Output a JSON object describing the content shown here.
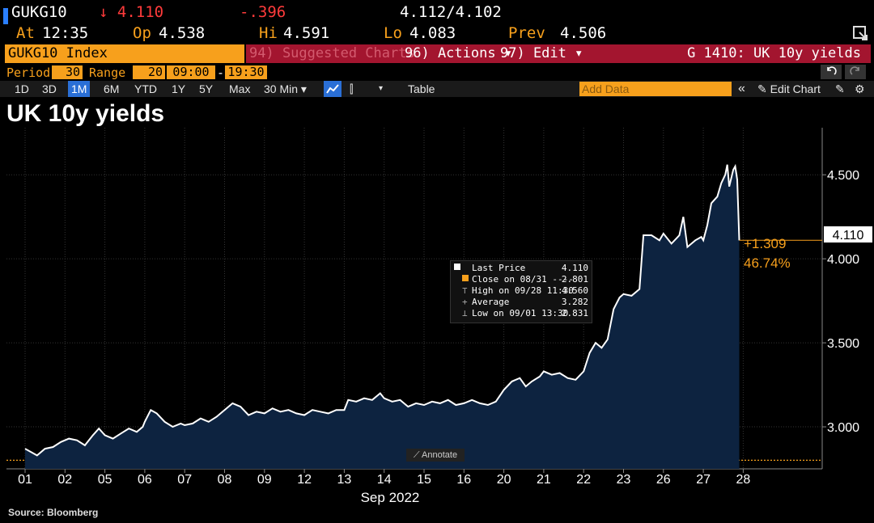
{
  "quote": {
    "ticker": "GUKG10",
    "last": "↓ 4.110",
    "change": "-.396",
    "bid_ask": "4.112/4.102",
    "at_label": "At",
    "at_value": "12:35",
    "op_label": "Op",
    "op_value": "4.538",
    "hi_label": "Hi",
    "hi_value": "4.591",
    "lo_label": "Lo",
    "lo_value": "4.083",
    "prev_label": "Prev",
    "prev_value": "4.506"
  },
  "toolbar": {
    "index": "GUKG10 Index",
    "suggested": "94) Suggested Charts",
    "actions": "96) Actions ▾",
    "edit": "97) Edit ▾",
    "function": "G 1410: UK 10y yields",
    "period_label": "Period",
    "period_value": "30",
    "range_label": "Range",
    "range_value": "20",
    "time_from": "09:00",
    "time_sep": "-",
    "time_to": "19:30",
    "ranges": [
      "1D",
      "3D",
      "1M",
      "6M",
      "YTD",
      "1Y",
      "5Y",
      "Max"
    ],
    "selected_range": "1M",
    "interval": "30 Min ▾",
    "table": "Table",
    "add_data": "Add Data",
    "collapse": "«",
    "edit_chart": "✎ Edit Chart"
  },
  "tooltip": {
    "rows": [
      {
        "label": "Last Price",
        "value": "4.110"
      },
      {
        "label": "Close on 08/31 ----",
        "value": "2.801"
      },
      {
        "label": "High on 09/28 11:30",
        "value": "4.560"
      },
      {
        "label": "Average",
        "value": "3.282"
      },
      {
        "label": "Low on 09/01 13:30",
        "value": "2.831"
      }
    ]
  },
  "annotate": "Annotate",
  "source": "Source: Bloomberg",
  "colors": {
    "accent": "#f7a01c",
    "bar": "#a3152f",
    "area": "#0d2340",
    "line": "#ffffff"
  },
  "chart_data": {
    "type": "area",
    "title": "UK 10y yields",
    "xlabel": "Sep 2022",
    "ylabel": "",
    "ylim": [
      2.75,
      4.78
    ],
    "yticks": [
      3.0,
      3.5,
      4.0,
      4.5
    ],
    "ytick_labels": [
      "3.000",
      "3.500",
      "4.000",
      "4.500"
    ],
    "x_categories": [
      "01",
      "02",
      "05",
      "06",
      "07",
      "08",
      "09",
      "12",
      "13",
      "14",
      "15",
      "16",
      "20",
      "21",
      "22",
      "23",
      "26",
      "27",
      "28"
    ],
    "reference_close": 2.801,
    "last_value": 4.11,
    "last_label": "4.110",
    "change_abs": "+1.309",
    "change_pct": "46.74%",
    "series": [
      {
        "values": [
          {
            "x": 0.0,
            "y": 2.87
          },
          {
            "x": 0.15,
            "y": 2.85
          },
          {
            "x": 0.3,
            "y": 2.83
          },
          {
            "x": 0.5,
            "y": 2.87
          },
          {
            "x": 0.7,
            "y": 2.88
          },
          {
            "x": 0.9,
            "y": 2.91
          },
          {
            "x": 1.1,
            "y": 2.93
          },
          {
            "x": 1.3,
            "y": 2.92
          },
          {
            "x": 1.5,
            "y": 2.89
          },
          {
            "x": 1.7,
            "y": 2.95
          },
          {
            "x": 1.85,
            "y": 2.99
          },
          {
            "x": 2.0,
            "y": 2.95
          },
          {
            "x": 2.2,
            "y": 2.93
          },
          {
            "x": 2.4,
            "y": 2.96
          },
          {
            "x": 2.6,
            "y": 2.99
          },
          {
            "x": 2.8,
            "y": 2.97
          },
          {
            "x": 2.95,
            "y": 3.0
          },
          {
            "x": 3.0,
            "y": 3.03
          },
          {
            "x": 3.15,
            "y": 3.1
          },
          {
            "x": 3.3,
            "y": 3.08
          },
          {
            "x": 3.5,
            "y": 3.03
          },
          {
            "x": 3.7,
            "y": 3.0
          },
          {
            "x": 3.9,
            "y": 3.02
          },
          {
            "x": 4.0,
            "y": 3.01
          },
          {
            "x": 4.2,
            "y": 3.02
          },
          {
            "x": 4.4,
            "y": 3.05
          },
          {
            "x": 4.6,
            "y": 3.03
          },
          {
            "x": 4.8,
            "y": 3.06
          },
          {
            "x": 5.0,
            "y": 3.1
          },
          {
            "x": 5.2,
            "y": 3.14
          },
          {
            "x": 5.4,
            "y": 3.12
          },
          {
            "x": 5.6,
            "y": 3.07
          },
          {
            "x": 5.8,
            "y": 3.09
          },
          {
            "x": 6.0,
            "y": 3.08
          },
          {
            "x": 6.2,
            "y": 3.11
          },
          {
            "x": 6.4,
            "y": 3.09
          },
          {
            "x": 6.6,
            "y": 3.1
          },
          {
            "x": 6.8,
            "y": 3.08
          },
          {
            "x": 7.0,
            "y": 3.07
          },
          {
            "x": 7.2,
            "y": 3.1
          },
          {
            "x": 7.4,
            "y": 3.09
          },
          {
            "x": 7.6,
            "y": 3.08
          },
          {
            "x": 7.8,
            "y": 3.1
          },
          {
            "x": 8.0,
            "y": 3.1
          },
          {
            "x": 8.1,
            "y": 3.16
          },
          {
            "x": 8.3,
            "y": 3.15
          },
          {
            "x": 8.5,
            "y": 3.17
          },
          {
            "x": 8.7,
            "y": 3.16
          },
          {
            "x": 8.9,
            "y": 3.2
          },
          {
            "x": 9.0,
            "y": 3.17
          },
          {
            "x": 9.2,
            "y": 3.15
          },
          {
            "x": 9.4,
            "y": 3.16
          },
          {
            "x": 9.6,
            "y": 3.12
          },
          {
            "x": 9.8,
            "y": 3.14
          },
          {
            "x": 10.0,
            "y": 3.13
          },
          {
            "x": 10.2,
            "y": 3.15
          },
          {
            "x": 10.4,
            "y": 3.14
          },
          {
            "x": 10.6,
            "y": 3.16
          },
          {
            "x": 10.8,
            "y": 3.13
          },
          {
            "x": 11.0,
            "y": 3.14
          },
          {
            "x": 11.2,
            "y": 3.16
          },
          {
            "x": 11.4,
            "y": 3.14
          },
          {
            "x": 11.6,
            "y": 3.13
          },
          {
            "x": 11.8,
            "y": 3.15
          },
          {
            "x": 12.0,
            "y": 3.22
          },
          {
            "x": 12.2,
            "y": 3.27
          },
          {
            "x": 12.4,
            "y": 3.29
          },
          {
            "x": 12.55,
            "y": 3.24
          },
          {
            "x": 12.7,
            "y": 3.27
          },
          {
            "x": 12.9,
            "y": 3.3
          },
          {
            "x": 13.0,
            "y": 3.33
          },
          {
            "x": 13.2,
            "y": 3.31
          },
          {
            "x": 13.4,
            "y": 3.32
          },
          {
            "x": 13.6,
            "y": 3.29
          },
          {
            "x": 13.8,
            "y": 3.28
          },
          {
            "x": 14.0,
            "y": 3.33
          },
          {
            "x": 14.15,
            "y": 3.44
          },
          {
            "x": 14.3,
            "y": 3.5
          },
          {
            "x": 14.45,
            "y": 3.47
          },
          {
            "x": 14.6,
            "y": 3.52
          },
          {
            "x": 14.75,
            "y": 3.7
          },
          {
            "x": 14.9,
            "y": 3.77
          },
          {
            "x": 15.0,
            "y": 3.79
          },
          {
            "x": 15.2,
            "y": 3.78
          },
          {
            "x": 15.4,
            "y": 3.82
          },
          {
            "x": 15.5,
            "y": 4.14
          },
          {
            "x": 15.7,
            "y": 4.14
          },
          {
            "x": 15.9,
            "y": 4.11
          },
          {
            "x": 16.0,
            "y": 4.15
          },
          {
            "x": 16.2,
            "y": 4.09
          },
          {
            "x": 16.4,
            "y": 4.14
          },
          {
            "x": 16.5,
            "y": 4.25
          },
          {
            "x": 16.6,
            "y": 4.07
          },
          {
            "x": 16.8,
            "y": 4.11
          },
          {
            "x": 16.95,
            "y": 4.13
          },
          {
            "x": 17.0,
            "y": 4.11
          },
          {
            "x": 17.1,
            "y": 4.2
          },
          {
            "x": 17.2,
            "y": 4.33
          },
          {
            "x": 17.35,
            "y": 4.37
          },
          {
            "x": 17.45,
            "y": 4.45
          },
          {
            "x": 17.55,
            "y": 4.5
          },
          {
            "x": 17.6,
            "y": 4.56
          },
          {
            "x": 17.65,
            "y": 4.43
          },
          {
            "x": 17.75,
            "y": 4.53
          },
          {
            "x": 17.8,
            "y": 4.55
          },
          {
            "x": 17.85,
            "y": 4.47
          },
          {
            "x": 17.9,
            "y": 4.11
          }
        ]
      }
    ],
    "grid": true,
    "legend": "none"
  }
}
